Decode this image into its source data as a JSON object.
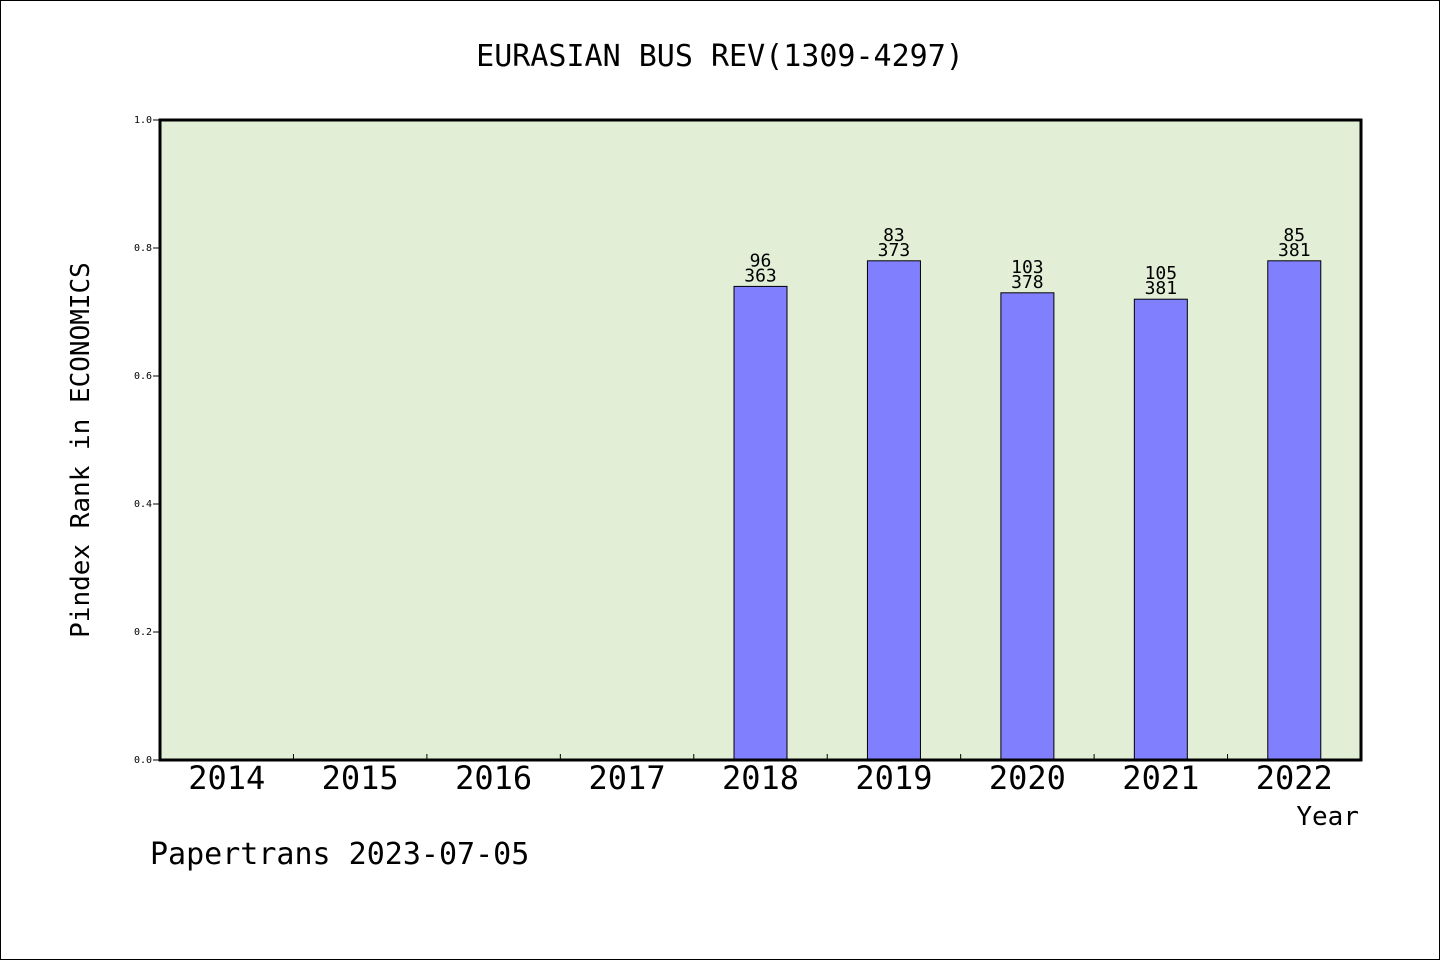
{
  "chart_data": {
    "type": "bar",
    "title": "EURASIAN BUS REV(1309-4297)",
    "xlabel": "Year",
    "ylabel": "Pindex Rank in ECONOMICS",
    "ylim": [
      0,
      1.0
    ],
    "yticks": [
      "0.0",
      "0.2",
      "0.4",
      "0.6",
      "0.8",
      "1.0"
    ],
    "categories": [
      "2014",
      "2015",
      "2016",
      "2017",
      "2018",
      "2019",
      "2020",
      "2021",
      "2022"
    ],
    "values": [
      null,
      null,
      null,
      null,
      0.74,
      0.78,
      0.73,
      0.72,
      0.78
    ],
    "rank_labels": [
      "",
      "",
      "",
      "",
      "96",
      "83",
      "103",
      "105",
      "85"
    ],
    "total_labels": [
      "",
      "",
      "",
      "",
      "363",
      "373",
      "378",
      "381",
      "381"
    ],
    "grid": false,
    "colors": {
      "bar": "#8080ff",
      "plot_bg": "#e2efd6",
      "axis": "#000000"
    }
  },
  "footer": {
    "text": "Papertrans 2023-07-05"
  }
}
